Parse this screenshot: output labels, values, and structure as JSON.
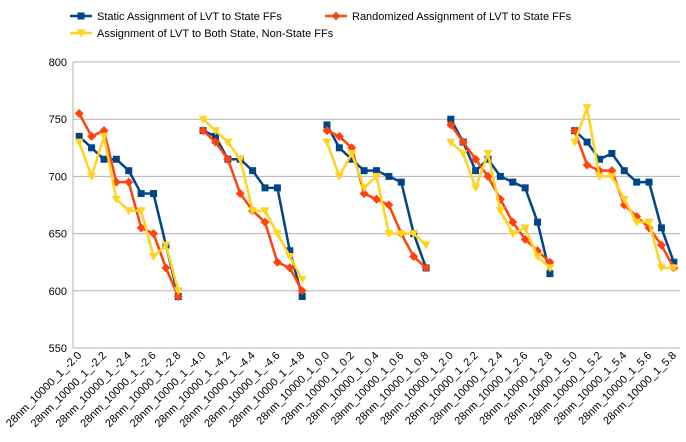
{
  "chart_data": {
    "type": "line",
    "categories": [
      "28nm_10000_1_-2.0",
      null,
      "28nm_10000_1_-2.2",
      null,
      "28nm_10000_1_-2.4",
      null,
      "28nm_10000_1_-2.6",
      null,
      "28nm_10000_1_-2.8",
      null,
      "28nm_10000_1_-4.0",
      null,
      "28nm_10000_1_-4.2",
      null,
      "28nm_10000_1_-4.4",
      null,
      "28nm_10000_1_-4.6",
      null,
      "28nm_10000_1_-4.8",
      null,
      "28nm_10000_1_0.0",
      null,
      "28nm_10000_1_0.2",
      null,
      "28nm_10000_1_0.4",
      null,
      "28nm_10000_1_0.6",
      null,
      "28nm_10000_1_0.8",
      null,
      "28nm_10000_1_2.0",
      null,
      "28nm_10000_1_2.2",
      null,
      "28nm_10000_1_2.4",
      null,
      "28nm_10000_1_2.6",
      null,
      "28nm_10000_1_2.8",
      null,
      "28nm_10000_1_5.0",
      null,
      "28nm_10000_1_5.2",
      null,
      "28nm_10000_1_5.4",
      null,
      "28nm_10000_1_5.6",
      null,
      "28nm_10000_1_5.8"
    ],
    "series": [
      {
        "name": "Static Assignment of LVT to State FFs",
        "color": "#004586",
        "marker": "square",
        "values": [
          735,
          725,
          715,
          715,
          705,
          685,
          685,
          640,
          595,
          null,
          740,
          735,
          715,
          715,
          705,
          690,
          690,
          635,
          595,
          null,
          745,
          725,
          715,
          705,
          705,
          700,
          695,
          650,
          620,
          null,
          750,
          730,
          705,
          715,
          700,
          695,
          690,
          660,
          615,
          null,
          740,
          730,
          715,
          720,
          705,
          695,
          695,
          655,
          625
        ]
      },
      {
        "name": "Randomized Assignment of LVT to State FFs",
        "color": "#ff420e",
        "marker": "diamond",
        "values": [
          755,
          735,
          740,
          695,
          695,
          655,
          650,
          620,
          595,
          null,
          740,
          730,
          715,
          685,
          670,
          660,
          625,
          620,
          600,
          null,
          740,
          735,
          725,
          685,
          680,
          675,
          650,
          630,
          620,
          null,
          745,
          730,
          715,
          700,
          680,
          660,
          645,
          635,
          625,
          null,
          740,
          710,
          705,
          705,
          675,
          665,
          655,
          640,
          620
        ]
      },
      {
        "name": "Assignment of LVT to Both State, Non-State FFs",
        "color": "#ffd320",
        "marker": "triangle",
        "values": [
          730,
          700,
          735,
          680,
          670,
          670,
          630,
          640,
          600,
          null,
          750,
          740,
          730,
          715,
          670,
          670,
          650,
          630,
          610,
          null,
          730,
          700,
          720,
          690,
          700,
          650,
          650,
          650,
          640,
          null,
          730,
          720,
          690,
          720,
          670,
          650,
          655,
          630,
          620,
          null,
          730,
          760,
          700,
          700,
          680,
          660,
          660,
          620,
          620
        ]
      }
    ],
    "ylim": [
      550,
      800
    ],
    "yticks": [
      550,
      600,
      650,
      700,
      750,
      800
    ],
    "grid": true
  }
}
